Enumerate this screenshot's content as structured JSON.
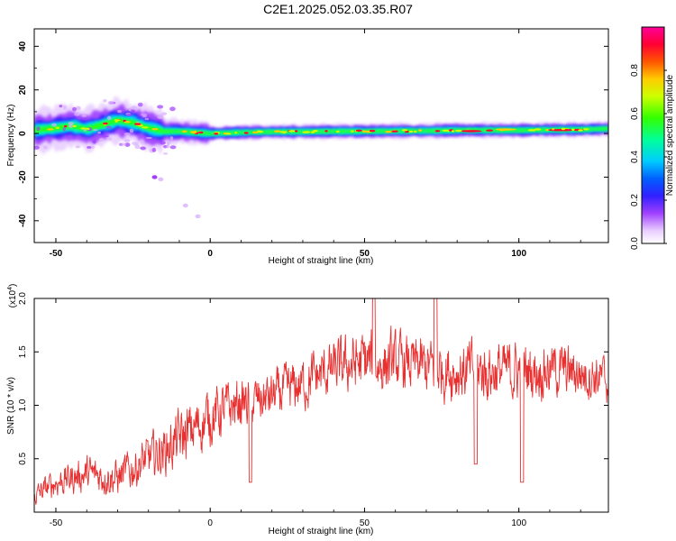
{
  "title": "C2E1.2025.052.03.35.R07",
  "chart_data": [
    {
      "type": "heatmap",
      "xlabel": "Height of straight line (km)",
      "ylabel": "Frequency (Hz)",
      "xlim": [
        -57,
        129
      ],
      "ylim": [
        -50,
        48
      ],
      "xticks": [
        -50,
        0,
        50,
        100
      ],
      "yticks": [
        40,
        20,
        0,
        -20,
        -40
      ],
      "ridge": {
        "x": [
          -57,
          -50,
          -45,
          -40,
          -35,
          -30,
          -25,
          -20,
          -15,
          -10,
          -5,
          0,
          10,
          20,
          30,
          40,
          50,
          60,
          70,
          80,
          90,
          100,
          110,
          120,
          129
        ],
        "freq": [
          1.5,
          2.5,
          3.5,
          2.0,
          4.0,
          6.0,
          5.0,
          2.5,
          1.0,
          1.0,
          0.5,
          0.0,
          0.5,
          0.8,
          0.8,
          1.0,
          1.0,
          1.2,
          1.2,
          1.5,
          1.5,
          1.5,
          1.7,
          1.8,
          2.2
        ]
      },
      "isolated_features": [
        {
          "x": -18,
          "freq": -20,
          "amplitude": 0.2
        },
        {
          "x": -16,
          "freq": -21,
          "amplitude": 0.15
        },
        {
          "x": -8,
          "freq": -33,
          "amplitude": 0.08
        },
        {
          "x": -4,
          "freq": -38,
          "amplitude": 0.1
        }
      ],
      "colorbar": {
        "label": "Normalized spectral amplitude",
        "range": [
          0.0,
          1.0
        ],
        "ticks": [
          "0.0",
          "0.2",
          "0.4",
          "0.6",
          "0.8"
        ],
        "stops": [
          {
            "v": 0.0,
            "c": "#ffffff"
          },
          {
            "v": 0.06,
            "c": "#e8ccff"
          },
          {
            "v": 0.14,
            "c": "#a040ff"
          },
          {
            "v": 0.22,
            "c": "#3020ff"
          },
          {
            "v": 0.3,
            "c": "#0060ff"
          },
          {
            "v": 0.38,
            "c": "#00ccff"
          },
          {
            "v": 0.48,
            "c": "#00ff99"
          },
          {
            "v": 0.58,
            "c": "#33ff00"
          },
          {
            "v": 0.68,
            "c": "#ccff00"
          },
          {
            "v": 0.76,
            "c": "#ffcc00"
          },
          {
            "v": 0.84,
            "c": "#ff5500"
          },
          {
            "v": 0.92,
            "c": "#ff0033"
          },
          {
            "v": 1.0,
            "c": "#ff0099"
          }
        ]
      }
    },
    {
      "type": "line",
      "xlabel": "Height of straight line (km)",
      "ylabel": "SNR (10 * v/v)",
      "exponent_label": "(x10",
      "exponent": "4",
      "exponent_close": ")",
      "xlim": [
        -57,
        129
      ],
      "ylim": [
        0.0,
        2.0
      ],
      "xticks": [
        -50,
        0,
        50,
        100
      ],
      "yticks": [
        "0.5",
        "1.0",
        "1.5",
        "2.0"
      ],
      "series": [
        {
          "color": "#e83030",
          "x": [
            -57,
            -50,
            -40,
            -30,
            -20,
            -15,
            -10,
            -5,
            0,
            5,
            10,
            15,
            20,
            25,
            30,
            35,
            40,
            45,
            50,
            55,
            60,
            65,
            70,
            75,
            80,
            85,
            90,
            95,
            100,
            105,
            110,
            115,
            120,
            125,
            129
          ],
          "envelope": [
            0.15,
            0.28,
            0.36,
            0.32,
            0.5,
            0.58,
            0.68,
            0.78,
            0.9,
            0.96,
            1.02,
            1.04,
            1.08,
            1.14,
            1.2,
            1.28,
            1.34,
            1.38,
            1.4,
            1.38,
            1.4,
            1.38,
            1.36,
            1.34,
            1.32,
            1.32,
            1.32,
            1.32,
            1.32,
            1.32,
            1.34,
            1.32,
            1.3,
            1.28,
            1.22
          ],
          "amplitude": [
            0.1,
            0.14,
            0.17,
            0.18,
            0.22,
            0.24,
            0.28,
            0.28,
            0.28,
            0.26,
            0.24,
            0.24,
            0.24,
            0.24,
            0.26,
            0.26,
            0.26,
            0.28,
            0.32,
            0.3,
            0.28,
            0.26,
            0.28,
            0.28,
            0.3,
            0.3,
            0.3,
            0.28,
            0.3,
            0.28,
            0.26,
            0.26,
            0.24,
            0.24,
            0.22
          ]
        }
      ],
      "notable_points": [
        {
          "x": 53,
          "y": 2.0
        },
        {
          "x": 73,
          "y": 2.0
        },
        {
          "x": 101,
          "y": 0.28
        },
        {
          "x": 86,
          "y": 0.45
        },
        {
          "x": 13,
          "y": 0.28
        }
      ]
    }
  ]
}
